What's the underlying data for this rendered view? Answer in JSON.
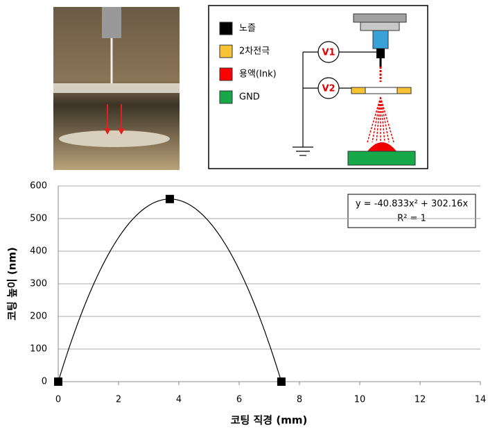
{
  "diagram": {
    "legend": [
      {
        "label": "노즐",
        "color": "#000000"
      },
      {
        "label": "2차전극",
        "color": "#f7c234"
      },
      {
        "label": "용액(Ink)",
        "color": "#ff0000"
      },
      {
        "label": "GND",
        "color": "#17a84b"
      }
    ],
    "sources": [
      "V1",
      "V2"
    ]
  },
  "chart_data": {
    "type": "scatter",
    "x_label": "코팅 직경 (mm)",
    "y_label": "코팅 높이 (nm)",
    "x": [
      0,
      3.7,
      7.4
    ],
    "values": [
      0,
      560,
      0
    ],
    "color": "#000000",
    "marker": "square",
    "trendline": {
      "type": "polynomial",
      "equation": "y = -40.833x² + 302.16x",
      "r2": "R² = 1"
    },
    "xlim": [
      0,
      14
    ],
    "xticks": [
      0,
      2,
      4,
      6,
      8,
      10,
      12,
      14
    ],
    "ylim": [
      0,
      600
    ],
    "yticks": [
      0,
      100,
      200,
      300,
      400,
      500,
      600
    ],
    "grid": true
  }
}
